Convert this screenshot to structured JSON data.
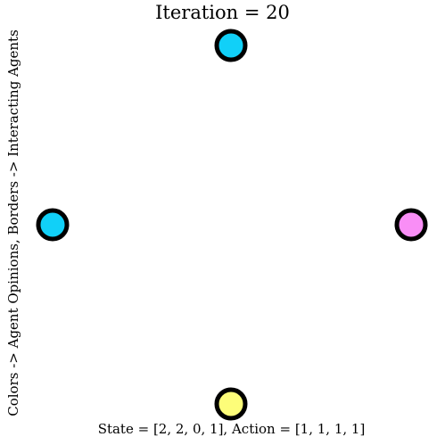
{
  "title": "Iteration = 20",
  "ylabel": "Colors -> Agent Opinions, Borders -> Interacting Agents",
  "footer": "State = [2, 2, 0, 1], Action = [1, 1, 1, 1]",
  "agents": [
    {
      "name": "agent-top",
      "position": "top",
      "opinion": 2,
      "action": 1,
      "fill": "#11d0f8"
    },
    {
      "name": "agent-left",
      "position": "left",
      "opinion": 2,
      "action": 1,
      "fill": "#11d0f8"
    },
    {
      "name": "agent-right",
      "position": "right",
      "opinion": 0,
      "action": 1,
      "fill": "#f98ef6"
    },
    {
      "name": "agent-bottom",
      "position": "bottom",
      "opinion": 1,
      "action": 1,
      "fill": "#fdfd79"
    }
  ],
  "colors": {
    "border_interacting": "#000000"
  }
}
